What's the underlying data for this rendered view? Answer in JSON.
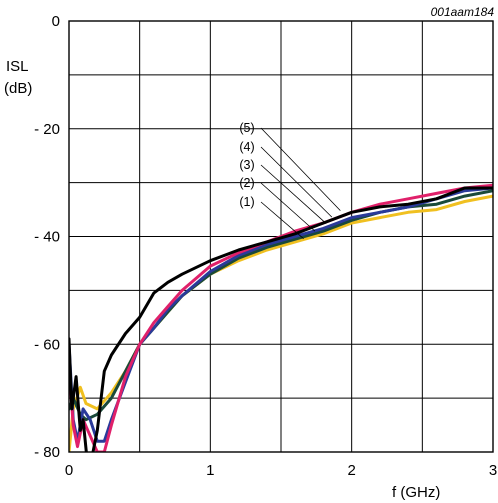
{
  "chart_data": {
    "type": "line",
    "figure_code": "001aam184",
    "ylabel": "ISL",
    "yunit": "(dB)",
    "xlabel": "f (GHz)",
    "xlim": [
      0,
      3
    ],
    "ylim": [
      -80,
      0
    ],
    "xticks": [
      0,
      1,
      2,
      3
    ],
    "xtick_labels": [
      "0",
      "1",
      "2",
      "3"
    ],
    "yticks": [
      0,
      -20,
      -40,
      -60,
      -80
    ],
    "ytick_labels": [
      "0",
      "- 20",
      "- 40",
      "- 60",
      "- 80"
    ],
    "grid": true,
    "series": [
      {
        "name": "(1)",
        "color": "#f0c020",
        "x": [
          0.0,
          0.03,
          0.08,
          0.12,
          0.2,
          0.3,
          0.4,
          0.5,
          0.6,
          0.7,
          0.8,
          1.0,
          1.2,
          1.4,
          1.6,
          1.8,
          2.0,
          2.2,
          2.4,
          2.6,
          2.8,
          3.0
        ],
        "y": [
          -80,
          -72,
          -68,
          -71,
          -72,
          -69,
          -65,
          -60,
          -57,
          -54,
          -51,
          -47,
          -44.5,
          -42.5,
          -41,
          -39.5,
          -37.5,
          -36.5,
          -35.5,
          -35,
          -33.5,
          -32.5
        ]
      },
      {
        "name": "(2)",
        "color": "#1a4a3a",
        "x": [
          0.0,
          0.03,
          0.08,
          0.12,
          0.2,
          0.3,
          0.4,
          0.5,
          0.6,
          0.7,
          0.8,
          1.0,
          1.2,
          1.4,
          1.6,
          1.8,
          2.0,
          2.2,
          2.4,
          2.6,
          2.8,
          3.0
        ],
        "y": [
          -72,
          -70,
          -73,
          -74,
          -73,
          -70,
          -65,
          -60,
          -57,
          -54,
          -51,
          -47,
          -44,
          -42,
          -40.5,
          -39,
          -37,
          -35.5,
          -34.5,
          -34,
          -32.5,
          -31.5
        ]
      },
      {
        "name": "(3)",
        "color": "#2a3a9a",
        "x": [
          0.0,
          0.03,
          0.06,
          0.1,
          0.15,
          0.2,
          0.25,
          0.3,
          0.4,
          0.5,
          0.6,
          0.7,
          0.8,
          1.0,
          1.2,
          1.4,
          1.6,
          1.8,
          2.0,
          2.2,
          2.4,
          2.6,
          2.8,
          3.0
        ],
        "y": [
          -60,
          -74,
          -78,
          -72,
          -74,
          -78,
          -78,
          -74,
          -67,
          -60,
          -57,
          -53.5,
          -51,
          -46.5,
          -43.5,
          -41.5,
          -40,
          -38.5,
          -36.5,
          -35.5,
          -34.5,
          -33,
          -31.5,
          -31
        ]
      },
      {
        "name": "(4)",
        "color": "#e0206a",
        "x": [
          0.0,
          0.03,
          0.06,
          0.1,
          0.15,
          0.2,
          0.25,
          0.3,
          0.4,
          0.5,
          0.6,
          0.7,
          0.8,
          1.0,
          1.2,
          1.4,
          1.6,
          1.8,
          2.0,
          2.2,
          2.4,
          2.6,
          2.8,
          3.0
        ],
        "y": [
          -64,
          -75,
          -79,
          -74,
          -77,
          -80,
          -80,
          -75,
          -66,
          -60,
          -56,
          -53,
          -50,
          -45.5,
          -43,
          -41,
          -39,
          -37.5,
          -35.5,
          -34,
          -33,
          -32,
          -31,
          -30.5
        ]
      },
      {
        "name": "(5)",
        "color": "#000000",
        "x": [
          0.0,
          0.02,
          0.05,
          0.08,
          0.1,
          0.13,
          0.17,
          0.2,
          0.25,
          0.3,
          0.4,
          0.5,
          0.6,
          0.7,
          0.8,
          1.0,
          1.2,
          1.4,
          1.6,
          1.8,
          2.0,
          2.2,
          2.4,
          2.6,
          2.8,
          3.0
        ],
        "y": [
          -59,
          -72,
          -66,
          -76,
          -74,
          -82,
          -80,
          -76,
          -65,
          -62,
          -58,
          -55,
          -50.5,
          -48.5,
          -47,
          -44.5,
          -42.5,
          -41,
          -39.5,
          -37.5,
          -35.5,
          -34.5,
          -34,
          -33,
          -31,
          -31
        ]
      }
    ],
    "labels": [
      "(5)",
      "(4)",
      "(3)",
      "(2)",
      "(1)"
    ]
  }
}
